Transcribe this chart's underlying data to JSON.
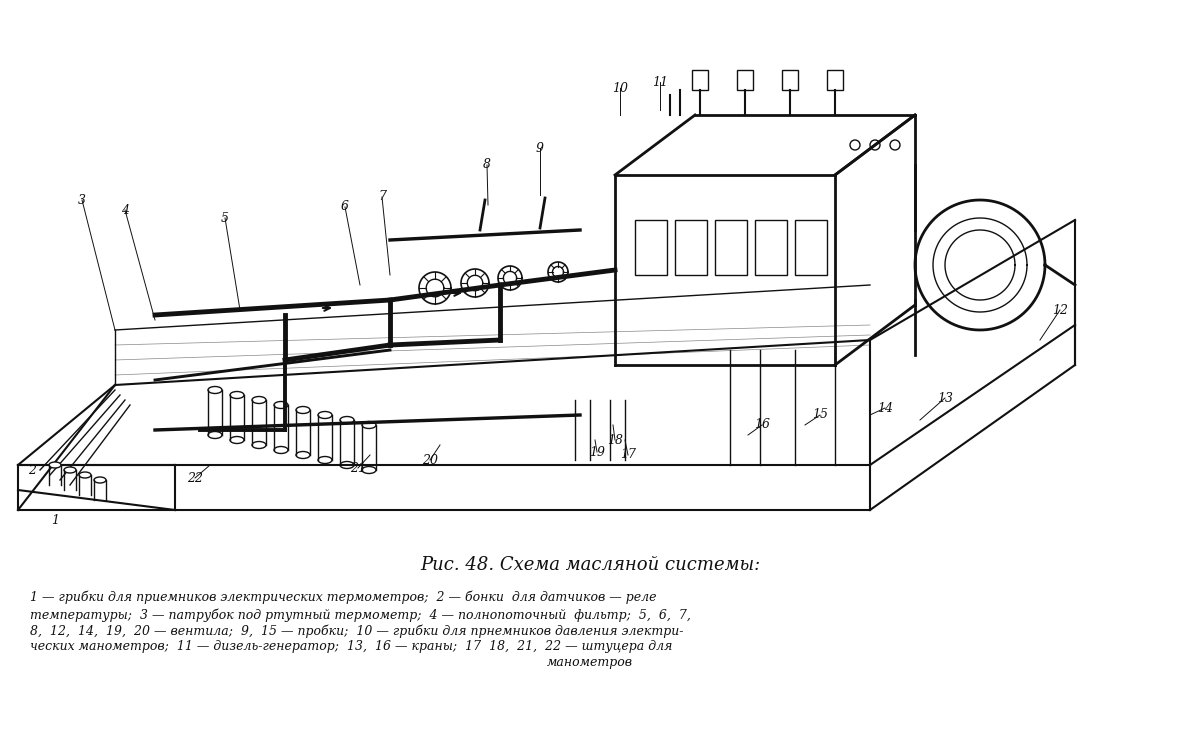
{
  "title": "Рис. 48. Схема масляной системы:",
  "caption_line1": "1 — грибки для приемников электрических термометров;  2 — бонки  для датчиков — реле",
  "caption_line2": "температуры;  3 — патрубок под ртутный термометр;  4 — полнопоточный  фильтр;  5,  6,  7,",
  "caption_line3": "8,  12,  14,  19,  20 — вентила;  9,  15 — пробки;  10 — грибки для прнемников давления электри-",
  "caption_line4": "ческих манометров;  11 — дизель-генератор;  13,  16 — краны;  17  18,  21,  22 — штуцера для",
  "caption_line5": "манометров",
  "bg_color": "#ffffff",
  "line_color": "#111111"
}
